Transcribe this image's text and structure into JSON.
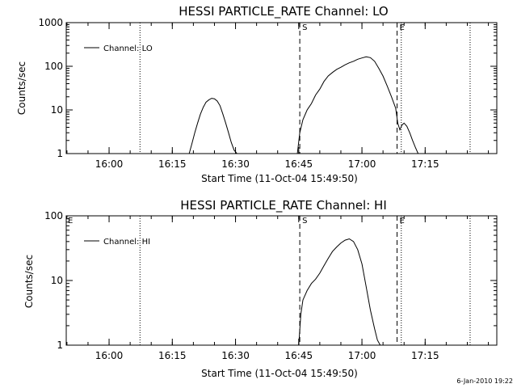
{
  "footer": {
    "date_stamp": "6-Jan-2010 19:22"
  },
  "chart_data": [
    {
      "type": "line",
      "title": "HESSI PARTICLE_RATE Channel: LO",
      "xlabel": "Start Time (11-Oct-04 15:49:50)",
      "ylabel": "Counts/sec",
      "yscale": "log",
      "xlim": [
        "15:49:50",
        "17:32:00"
      ],
      "ylim": [
        1,
        1000
      ],
      "xticks": [
        "16:00",
        "16:15",
        "16:30",
        "16:45",
        "17:00",
        "17:15"
      ],
      "yticks": [
        "1",
        "10",
        "100",
        "1000"
      ],
      "legend": {
        "position": "top-left",
        "entries": [
          "Channel: LO"
        ]
      },
      "markers": [
        {
          "time": "16:45:15",
          "label": "S",
          "style": "dashed"
        },
        {
          "time": "17:08:20",
          "label": "E",
          "style": "dashed"
        }
      ],
      "intervals": [
        {
          "time": "16:07:20",
          "style": "dotted"
        },
        {
          "time": "17:09:20",
          "style": "dotted"
        },
        {
          "time": "17:25:40",
          "style": "dotted"
        }
      ],
      "series": [
        {
          "name": "Channel: LO",
          "segments": [
            {
              "x": [
                "16:19:00",
                "16:19:40",
                "16:20:20",
                "16:21:00",
                "16:21:40",
                "16:22:20",
                "16:23:00",
                "16:23:40",
                "16:24:20",
                "16:25:00",
                "16:25:40",
                "16:26:20",
                "16:27:00",
                "16:27:40",
                "16:28:20",
                "16:29:00",
                "16:29:40",
                "16:30:20"
              ],
              "y": [
                1,
                1.7,
                3,
                5,
                8,
                11.5,
                15,
                17,
                18.5,
                18,
                16,
                12.5,
                8,
                5,
                3,
                1.8,
                1.2,
                1
              ]
            },
            {
              "x": [
                "16:44:40",
                "16:45:15",
                "16:46:00",
                "16:47:00",
                "16:48:00",
                "16:49:00",
                "16:50:00",
                "16:51:00",
                "16:52:00",
                "16:53:00",
                "16:54:00",
                "16:55:00",
                "16:56:00",
                "16:57:00",
                "16:58:00",
                "16:59:00",
                "17:00:00",
                "17:01:00",
                "17:02:00",
                "17:03:00",
                "17:04:00",
                "17:05:00",
                "17:06:00",
                "17:07:00",
                "17:08:00",
                "17:08:30",
                "17:09:00",
                "17:09:30",
                "17:10:00",
                "17:10:40",
                "17:11:20",
                "17:12:00",
                "17:12:40",
                "17:13:20"
              ],
              "y": [
                1,
                3,
                6,
                10,
                14,
                22,
                30,
                45,
                60,
                72,
                85,
                95,
                108,
                120,
                130,
                145,
                155,
                165,
                158,
                130,
                90,
                60,
                35,
                20,
                11,
                5,
                3.5,
                4.5,
                5,
                4.2,
                3,
                2,
                1.4,
                1
              ]
            }
          ]
        }
      ]
    },
    {
      "type": "line",
      "title": "HESSI PARTICLE_RATE Channel: HI",
      "xlabel": "Start Time (11-Oct-04 15:49:50)",
      "ylabel": "Counts/sec",
      "yscale": "log",
      "xlim": [
        "15:49:50",
        "17:32:00"
      ],
      "ylim": [
        1,
        100
      ],
      "xticks": [
        "16:00",
        "16:15",
        "16:30",
        "16:45",
        "17:00",
        "17:15"
      ],
      "yticks": [
        "1",
        "10",
        "100"
      ],
      "legend": {
        "position": "top-left",
        "entries": [
          "Channel: HI"
        ]
      },
      "markers": [
        {
          "time": "16:45:15",
          "label": "S",
          "style": "dashed"
        },
        {
          "time": "17:08:20",
          "label": "E",
          "style": "dashed"
        }
      ],
      "intervals": [
        {
          "time": "16:07:20",
          "style": "dotted"
        },
        {
          "time": "17:09:20",
          "style": "dotted"
        },
        {
          "time": "17:25:40",
          "style": "dotted"
        }
      ],
      "edge_labels": [
        "E"
      ],
      "series": [
        {
          "name": "Channel: HI",
          "segments": [
            {
              "x": [
                "16:45:00",
                "16:45:30",
                "16:46:00",
                "16:47:00",
                "16:48:00",
                "16:49:00",
                "16:50:00",
                "16:51:00",
                "16:52:00",
                "16:53:00",
                "16:54:00",
                "16:55:00",
                "16:56:00",
                "16:57:00",
                "16:58:00",
                "16:59:00",
                "17:00:00",
                "17:01:00",
                "17:02:00",
                "17:03:00",
                "17:03:40",
                "17:04:20"
              ],
              "y": [
                1,
                3,
                5,
                7,
                9,
                10.5,
                13,
                17,
                22,
                28,
                33,
                38,
                42,
                44,
                40,
                30,
                18,
                8,
                3.5,
                1.8,
                1.2,
                1
              ]
            }
          ]
        }
      ]
    }
  ]
}
